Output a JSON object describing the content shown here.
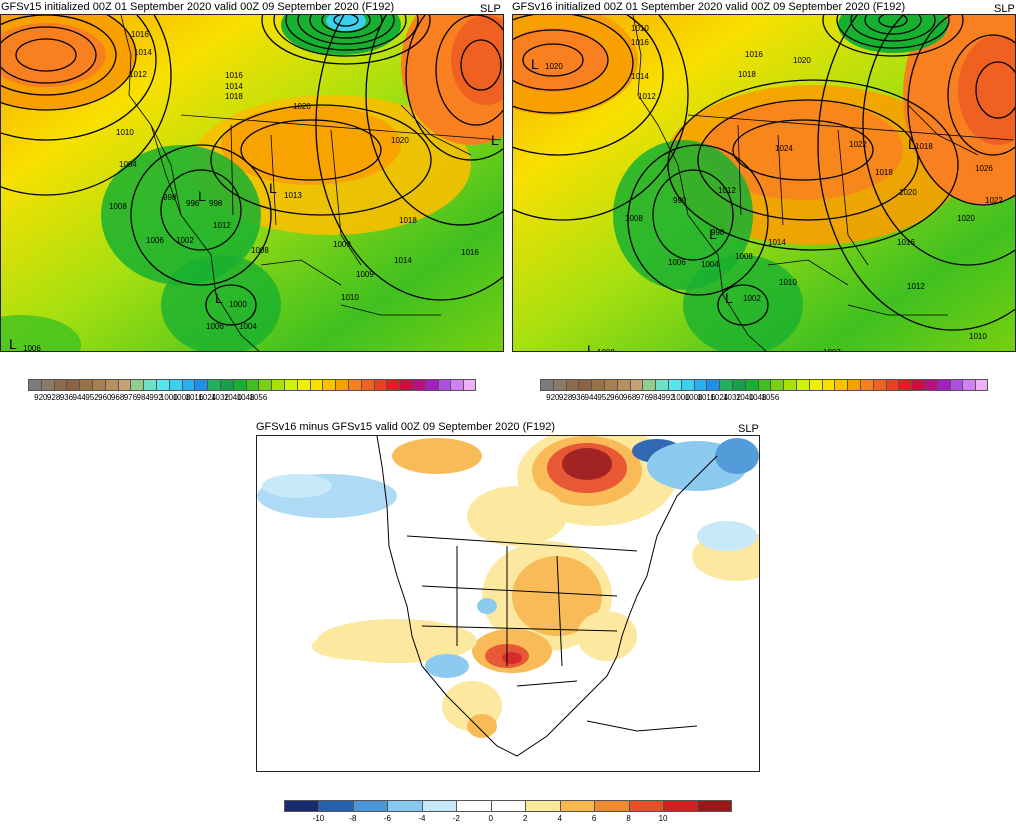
{
  "panels": {
    "left": {
      "title": "GFSv15 initialized 00Z 01 September 2020 valid 00Z 09 September 2020 (F192)",
      "tag": "SLP",
      "contour_labels": [
        "1016",
        "1014",
        "1012",
        "1014",
        "1016",
        "1018",
        "1020",
        "1020",
        "1010",
        "1004",
        "1008",
        "1006",
        "1002",
        "998",
        "996",
        "998",
        "1012",
        "1013",
        "1008",
        "1009",
        "1018",
        "1016",
        "1014",
        "1009",
        "1010",
        "1000",
        "1006",
        "1004",
        "1006"
      ]
    },
    "right": {
      "title": "GFSv16 initialized 00Z 01 September 2020 valid 00Z 09 September 2020 (F192)",
      "tag": "SLP",
      "contour_labels": [
        "1020",
        "1016",
        "1010",
        "1016",
        "1014",
        "1012",
        "1020",
        "1018",
        "1024",
        "1022",
        "1018",
        "1026",
        "1018",
        "1020",
        "1022",
        "1020",
        "1016",
        "1012",
        "999",
        "998",
        "1008",
        "1014",
        "1008",
        "1006",
        "1004",
        "1010",
        "1002",
        "1012",
        "1010",
        "1008",
        "1007"
      ]
    },
    "diff": {
      "title": "GFSv16 minus GFSv15 valid 00Z 09 September 2020 (F192)",
      "tag": "SLP"
    }
  },
  "slp_colorbar": {
    "colors": [
      "#7a7a7a",
      "#8c7a66",
      "#8e6a4e",
      "#8e6240",
      "#9a7048",
      "#a8804e",
      "#b89060",
      "#c8a07a",
      "#8ed08e",
      "#6ee0c8",
      "#56e6ee",
      "#3cd0f0",
      "#2aaef0",
      "#1e90e8",
      "#20b060",
      "#14a048",
      "#18b030",
      "#40c020",
      "#78d010",
      "#a6e010",
      "#d0f010",
      "#f0f010",
      "#f8e000",
      "#f8c000",
      "#f8a000",
      "#f88020",
      "#f06020",
      "#e84020",
      "#e02020",
      "#c81040",
      "#b81080",
      "#a020c0",
      "#b050e0",
      "#d080f0",
      "#f0b0f8"
    ],
    "labels": [
      "920",
      "928",
      "936",
      "944",
      "952",
      "960",
      "968",
      "976",
      "984",
      "992",
      "1000",
      "1008",
      "1016",
      "1024",
      "1032",
      "1040",
      "1048",
      "1056"
    ]
  },
  "diff_colorbar": {
    "colors": [
      "#1a2a6e",
      "#2860b0",
      "#4a96d8",
      "#86c8f0",
      "#c6e8f8",
      "#ffffff",
      "#ffffff",
      "#fce89a",
      "#f8b850",
      "#f08a30",
      "#e8502a",
      "#d42020",
      "#9c1818"
    ],
    "labels": [
      "-10",
      "-8",
      "-6",
      "-4",
      "-2",
      "0",
      "2",
      "4",
      "6",
      "8",
      "10"
    ]
  }
}
